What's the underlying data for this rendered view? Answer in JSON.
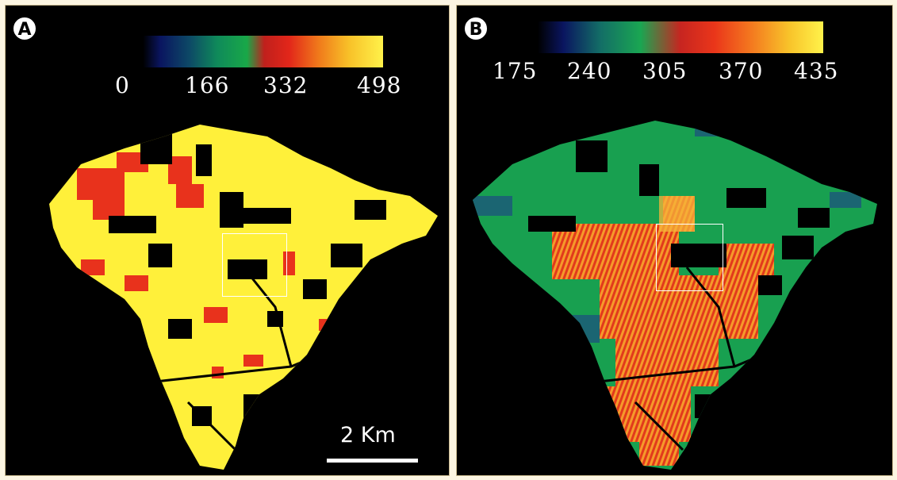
{
  "panel_a": {
    "label": "A",
    "colorbar_ticks": [
      "0",
      "166",
      "332",
      "498"
    ],
    "scale_bar": "2 Km",
    "palette": [
      "#fff03a",
      "#e8321c",
      "#f0a020",
      "#000000"
    ]
  },
  "panel_b": {
    "label": "B",
    "colorbar_ticks": [
      "175",
      "240",
      "305",
      "370",
      "435"
    ],
    "palette": [
      "#18a050",
      "#e23a1c",
      "#f59a2a",
      "#1c5a78"
    ]
  }
}
